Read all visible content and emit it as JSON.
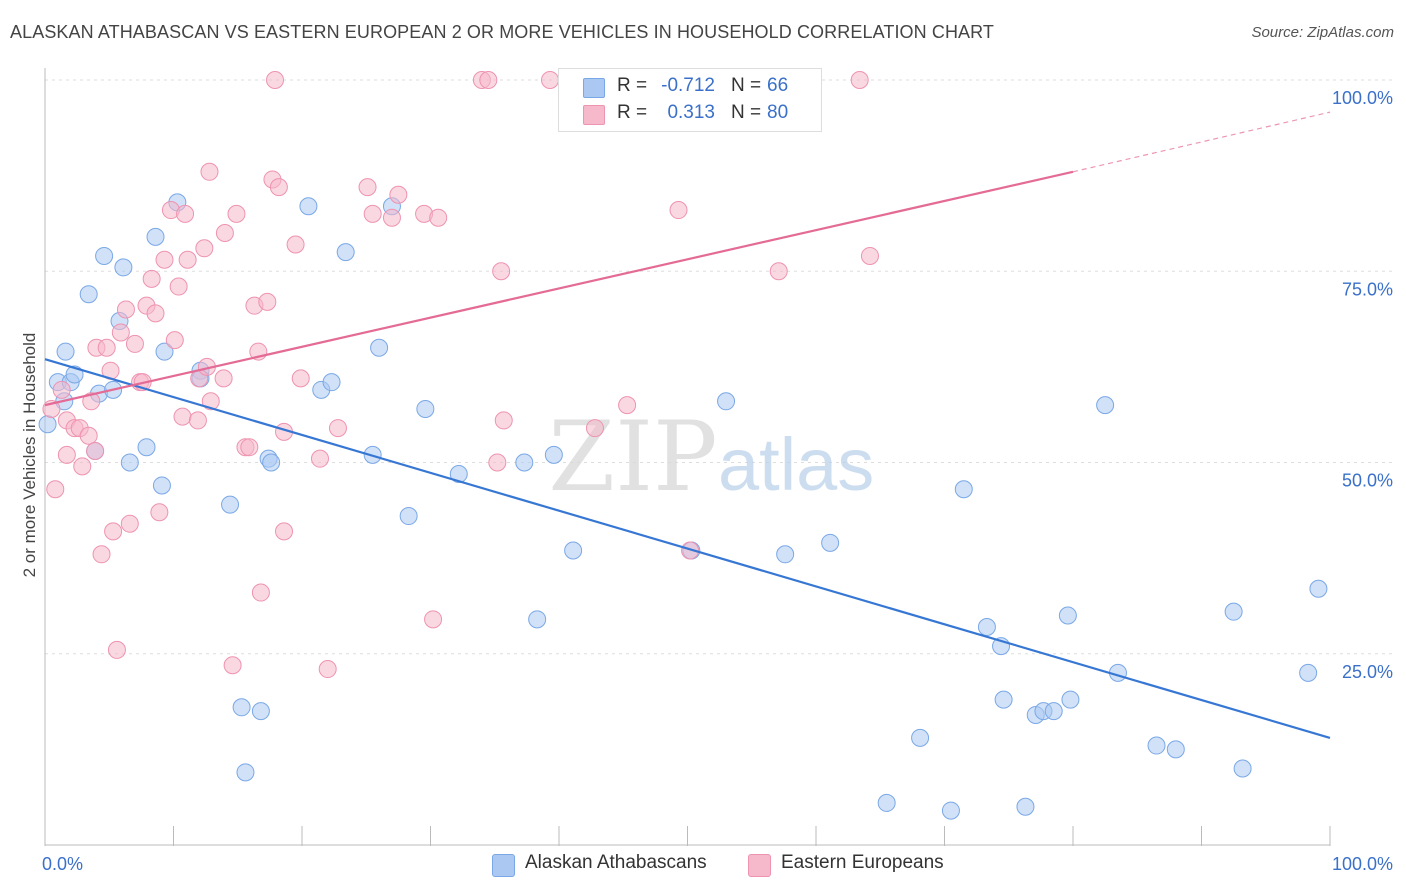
{
  "title": "ALASKAN ATHABASCAN VS EASTERN EUROPEAN 2 OR MORE VEHICLES IN HOUSEHOLD CORRELATION CHART",
  "source": "Source: ZipAtlas.com",
  "watermark": {
    "zip": "ZIP",
    "atlas": "atlas"
  },
  "stats": {
    "rows": [
      {
        "r_label": "R =",
        "r_value": "-0.712",
        "n_label": "N =",
        "n_value": "66",
        "color": "#aac8f2"
      },
      {
        "r_label": "R =",
        "r_value": "0.313",
        "n_label": "N =",
        "n_value": "80",
        "color": "#f6b8cb"
      }
    ]
  },
  "legend": {
    "items": [
      {
        "label": "Alaskan Athabascans",
        "color": "#aac8f2"
      },
      {
        "label": "Eastern Europeans",
        "color": "#f6b8cb"
      }
    ]
  },
  "chart_data": {
    "type": "scatter",
    "title": "ALASKAN ATHABASCAN VS EASTERN EUROPEAN 2 OR MORE VEHICLES IN HOUSEHOLD CORRELATION CHART",
    "xlabel": "",
    "ylabel": "2 or more Vehicles in Household",
    "xlim": [
      0,
      100
    ],
    "ylim": [
      0,
      100
    ],
    "x_tick_labels": [
      {
        "value": 0,
        "label": "0.0%"
      },
      {
        "value": 100,
        "label": "100.0%"
      }
    ],
    "y_tick_labels": [
      {
        "value": 25,
        "label": "25.0%"
      },
      {
        "value": 50,
        "label": "50.0%"
      },
      {
        "value": 75,
        "label": "75.0%"
      },
      {
        "value": 100,
        "label": "100.0%"
      }
    ],
    "grid": true,
    "legend_position": "bottom",
    "series": [
      {
        "name": "Alaskan Athabascans",
        "color": "#aac8f2",
        "stroke": "#7aa8e6",
        "points": [
          [
            0.2,
            55.0
          ],
          [
            1.0,
            60.5
          ],
          [
            1.5,
            58.0
          ],
          [
            1.6,
            64.5
          ],
          [
            2.0,
            60.5
          ],
          [
            2.3,
            61.5
          ],
          [
            3.4,
            72.0
          ],
          [
            3.9,
            51.5
          ],
          [
            4.2,
            59.0
          ],
          [
            4.6,
            77.0
          ],
          [
            5.3,
            59.5
          ],
          [
            5.8,
            68.5
          ],
          [
            6.1,
            75.5
          ],
          [
            6.6,
            50.0
          ],
          [
            7.9,
            52.0
          ],
          [
            8.6,
            79.5
          ],
          [
            9.1,
            47.0
          ],
          [
            9.3,
            64.5
          ],
          [
            10.3,
            84.0
          ],
          [
            12.1,
            62.0
          ],
          [
            12.1,
            61.0
          ],
          [
            14.4,
            44.5
          ],
          [
            15.3,
            18.0
          ],
          [
            15.6,
            9.5
          ],
          [
            16.8,
            17.5
          ],
          [
            17.4,
            50.5
          ],
          [
            17.6,
            50.0
          ],
          [
            20.5,
            83.5
          ],
          [
            21.5,
            59.5
          ],
          [
            22.3,
            60.5
          ],
          [
            23.4,
            77.5
          ],
          [
            25.5,
            51.0
          ],
          [
            26.0,
            65.0
          ],
          [
            27.0,
            83.5
          ],
          [
            28.3,
            43.0
          ],
          [
            29.6,
            57.0
          ],
          [
            32.2,
            48.5
          ],
          [
            37.3,
            50.0
          ],
          [
            38.3,
            29.5
          ],
          [
            39.6,
            51.0
          ],
          [
            41.1,
            38.5
          ],
          [
            50.3,
            38.5
          ],
          [
            53.0,
            58.0
          ],
          [
            57.6,
            38.0
          ],
          [
            61.1,
            39.5
          ],
          [
            65.5,
            5.5
          ],
          [
            68.1,
            14.0
          ],
          [
            70.5,
            4.5
          ],
          [
            71.5,
            46.5
          ],
          [
            73.3,
            28.5
          ],
          [
            74.4,
            26.0
          ],
          [
            74.6,
            19.0
          ],
          [
            76.3,
            5.0
          ],
          [
            77.1,
            17.0
          ],
          [
            77.7,
            17.5
          ],
          [
            78.5,
            17.5
          ],
          [
            79.6,
            30.0
          ],
          [
            79.8,
            19.0
          ],
          [
            82.5,
            57.5
          ],
          [
            83.5,
            22.5
          ],
          [
            86.5,
            13.0
          ],
          [
            88.0,
            12.5
          ],
          [
            92.5,
            30.5
          ],
          [
            93.2,
            10.0
          ],
          [
            98.3,
            22.5
          ],
          [
            99.1,
            33.5
          ]
        ]
      },
      {
        "name": "Eastern Europeans",
        "color": "#f6b8cb",
        "stroke": "#ee93b0",
        "points": [
          [
            0.5,
            57.0
          ],
          [
            0.8,
            46.5
          ],
          [
            1.3,
            59.5
          ],
          [
            1.7,
            55.5
          ],
          [
            1.7,
            51.0
          ],
          [
            2.3,
            54.5
          ],
          [
            2.7,
            54.5
          ],
          [
            2.9,
            49.5
          ],
          [
            3.4,
            53.5
          ],
          [
            3.6,
            58.0
          ],
          [
            3.9,
            51.5
          ],
          [
            4.0,
            65.0
          ],
          [
            4.4,
            38.0
          ],
          [
            4.8,
            65.0
          ],
          [
            5.1,
            62.0
          ],
          [
            5.3,
            41.0
          ],
          [
            5.6,
            25.5
          ],
          [
            5.9,
            67.0
          ],
          [
            6.3,
            70.0
          ],
          [
            6.6,
            42.0
          ],
          [
            7.0,
            65.5
          ],
          [
            7.4,
            60.5
          ],
          [
            7.6,
            60.5
          ],
          [
            7.9,
            70.5
          ],
          [
            8.3,
            74.0
          ],
          [
            8.6,
            69.5
          ],
          [
            8.9,
            43.5
          ],
          [
            9.3,
            76.5
          ],
          [
            9.8,
            83.0
          ],
          [
            10.1,
            66.0
          ],
          [
            10.4,
            73.0
          ],
          [
            10.7,
            56.0
          ],
          [
            10.9,
            82.5
          ],
          [
            11.1,
            76.5
          ],
          [
            11.9,
            55.5
          ],
          [
            12.0,
            61.0
          ],
          [
            12.4,
            78.0
          ],
          [
            12.6,
            62.5
          ],
          [
            12.8,
            88.0
          ],
          [
            12.9,
            58.0
          ],
          [
            13.9,
            61.0
          ],
          [
            14.0,
            80.0
          ],
          [
            14.6,
            23.5
          ],
          [
            14.9,
            82.5
          ],
          [
            15.6,
            52.0
          ],
          [
            15.9,
            52.0
          ],
          [
            16.3,
            70.5
          ],
          [
            16.6,
            64.5
          ],
          [
            16.8,
            33.0
          ],
          [
            17.3,
            71.0
          ],
          [
            17.7,
            87.0
          ],
          [
            17.9,
            100.0
          ],
          [
            18.2,
            86.0
          ],
          [
            18.6,
            54.0
          ],
          [
            18.6,
            41.0
          ],
          [
            19.5,
            78.5
          ],
          [
            19.9,
            61.0
          ],
          [
            21.4,
            50.5
          ],
          [
            22.0,
            23.0
          ],
          [
            22.8,
            54.5
          ],
          [
            25.1,
            86.0
          ],
          [
            25.5,
            82.5
          ],
          [
            27.0,
            82.0
          ],
          [
            27.5,
            85.0
          ],
          [
            29.5,
            82.5
          ],
          [
            30.2,
            29.5
          ],
          [
            30.6,
            82.0
          ],
          [
            34.0,
            100.0
          ],
          [
            34.5,
            100.0
          ],
          [
            35.2,
            50.0
          ],
          [
            35.5,
            75.0
          ],
          [
            35.7,
            55.5
          ],
          [
            39.3,
            100.0
          ],
          [
            42.8,
            54.5
          ],
          [
            45.3,
            57.5
          ],
          [
            49.3,
            83.0
          ],
          [
            50.2,
            38.5
          ],
          [
            57.1,
            75.0
          ],
          [
            63.4,
            100.0
          ],
          [
            64.2,
            77.0
          ]
        ]
      }
    ],
    "trend_lines": [
      {
        "series": "Alaskan Athabascans",
        "x1": 0,
        "y1": 63.5,
        "x2": 100,
        "y2": 14.0,
        "color": "#3777d4"
      },
      {
        "series": "Eastern Europeans",
        "x1": 0,
        "y1": 57.5,
        "x2": 80,
        "y2": 88.0,
        "color": "#e46b95",
        "dashed_to_x": 100,
        "dashed_to_y": 95.8
      }
    ]
  }
}
